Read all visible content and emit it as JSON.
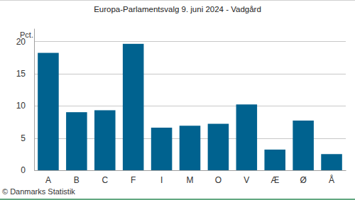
{
  "chart_data": {
    "type": "bar",
    "title": "Europa-Parlamentsvalg 9. juni 2024 - Vadgård",
    "y_label": "Pct.",
    "source": "© Danmarks Statistik",
    "categories": [
      "A",
      "B",
      "C",
      "F",
      "I",
      "M",
      "O",
      "V",
      "Æ",
      "Ø",
      "Å"
    ],
    "values": [
      18.2,
      9.0,
      9.3,
      19.6,
      6.6,
      6.9,
      7.2,
      10.2,
      3.2,
      7.7,
      2.5
    ],
    "color": "#00628f",
    "ylim": [
      0,
      22
    ],
    "yticks": [
      0,
      5,
      10,
      15,
      20
    ],
    "grid": true
  }
}
